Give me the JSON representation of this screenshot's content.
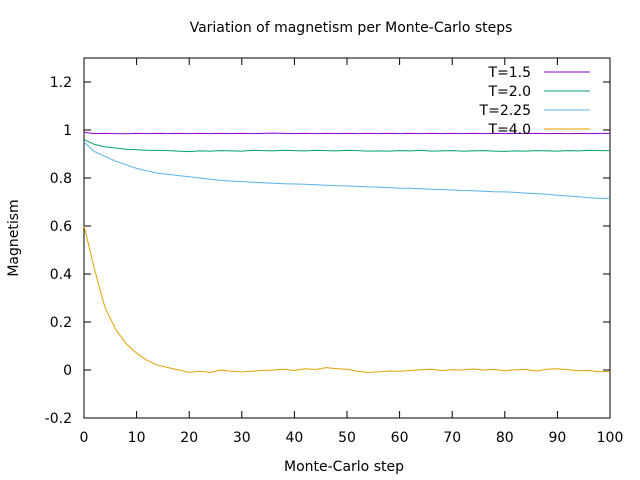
{
  "chart_data": {
    "type": "line",
    "title": "Variation of magnetism per Monte-Carlo steps",
    "xlabel": "Monte-Carlo step",
    "ylabel": "Magnetism",
    "xlim": [
      0,
      100
    ],
    "ylim": [
      -0.2,
      1.3
    ],
    "xticks": [
      0,
      10,
      20,
      30,
      40,
      50,
      60,
      70,
      80,
      90,
      100
    ],
    "yticks": [
      -0.2,
      0,
      0.2,
      0.4,
      0.6,
      0.8,
      1,
      1.2
    ],
    "grid": false,
    "legend_position": "top-right",
    "x": [
      0,
      2,
      4,
      6,
      8,
      10,
      12,
      14,
      16,
      18,
      20,
      22,
      24,
      26,
      28,
      30,
      32,
      34,
      36,
      38,
      40,
      42,
      44,
      46,
      48,
      50,
      52,
      54,
      56,
      58,
      60,
      62,
      64,
      66,
      68,
      70,
      72,
      74,
      76,
      78,
      80,
      82,
      84,
      86,
      88,
      90,
      92,
      94,
      96,
      98,
      100
    ],
    "series": [
      {
        "name": "T=1.5",
        "color": "#9400d3",
        "values": [
          0.99,
          0.985,
          0.986,
          0.985,
          0.984,
          0.986,
          0.985,
          0.986,
          0.985,
          0.986,
          0.985,
          0.986,
          0.985,
          0.986,
          0.985,
          0.986,
          0.985,
          0.986,
          0.987,
          0.986,
          0.985,
          0.986,
          0.985,
          0.986,
          0.985,
          0.986,
          0.985,
          0.986,
          0.985,
          0.986,
          0.985,
          0.986,
          0.985,
          0.986,
          0.985,
          0.986,
          0.985,
          0.986,
          0.985,
          0.986,
          0.985,
          0.986,
          0.985,
          0.986,
          0.985,
          0.986,
          0.985,
          0.986,
          0.985,
          0.986,
          0.986
        ]
      },
      {
        "name": "T=2.0",
        "color": "#009e73",
        "values": [
          0.96,
          0.94,
          0.93,
          0.925,
          0.92,
          0.918,
          0.916,
          0.915,
          0.914,
          0.912,
          0.91,
          0.913,
          0.912,
          0.914,
          0.913,
          0.912,
          0.915,
          0.914,
          0.913,
          0.916,
          0.914,
          0.913,
          0.915,
          0.914,
          0.913,
          0.915,
          0.914,
          0.912,
          0.913,
          0.912,
          0.914,
          0.913,
          0.915,
          0.912,
          0.913,
          0.914,
          0.912,
          0.913,
          0.914,
          0.912,
          0.911,
          0.913,
          0.912,
          0.914,
          0.913,
          0.912,
          0.914,
          0.913,
          0.915,
          0.914,
          0.914
        ]
      },
      {
        "name": "T=2.25",
        "color": "#56b4e9",
        "values": [
          0.95,
          0.91,
          0.89,
          0.87,
          0.855,
          0.84,
          0.83,
          0.82,
          0.815,
          0.81,
          0.805,
          0.8,
          0.795,
          0.79,
          0.787,
          0.785,
          0.782,
          0.78,
          0.778,
          0.776,
          0.775,
          0.774,
          0.772,
          0.77,
          0.768,
          0.767,
          0.765,
          0.763,
          0.762,
          0.76,
          0.758,
          0.757,
          0.755,
          0.753,
          0.752,
          0.75,
          0.748,
          0.747,
          0.745,
          0.743,
          0.742,
          0.74,
          0.737,
          0.735,
          0.732,
          0.728,
          0.725,
          0.722,
          0.718,
          0.715,
          0.716
        ]
      },
      {
        "name": "T=4.0",
        "color": "#e69f00",
        "values": [
          0.6,
          0.42,
          0.26,
          0.17,
          0.11,
          0.07,
          0.04,
          0.02,
          0.01,
          0.0,
          -0.01,
          -0.005,
          -0.01,
          0.0,
          -0.005,
          -0.008,
          -0.005,
          -0.002,
          0.0,
          0.003,
          -0.002,
          0.005,
          0.002,
          0.01,
          0.006,
          0.003,
          -0.005,
          -0.01,
          -0.008,
          -0.004,
          -0.006,
          -0.002,
          0.001,
          0.003,
          -0.002,
          0.001,
          0.0,
          0.004,
          0.0,
          0.002,
          -0.003,
          0.001,
          0.002,
          -0.004,
          0.003,
          0.005,
          0.001,
          -0.003,
          -0.002,
          -0.008,
          -0.006
        ]
      }
    ]
  }
}
